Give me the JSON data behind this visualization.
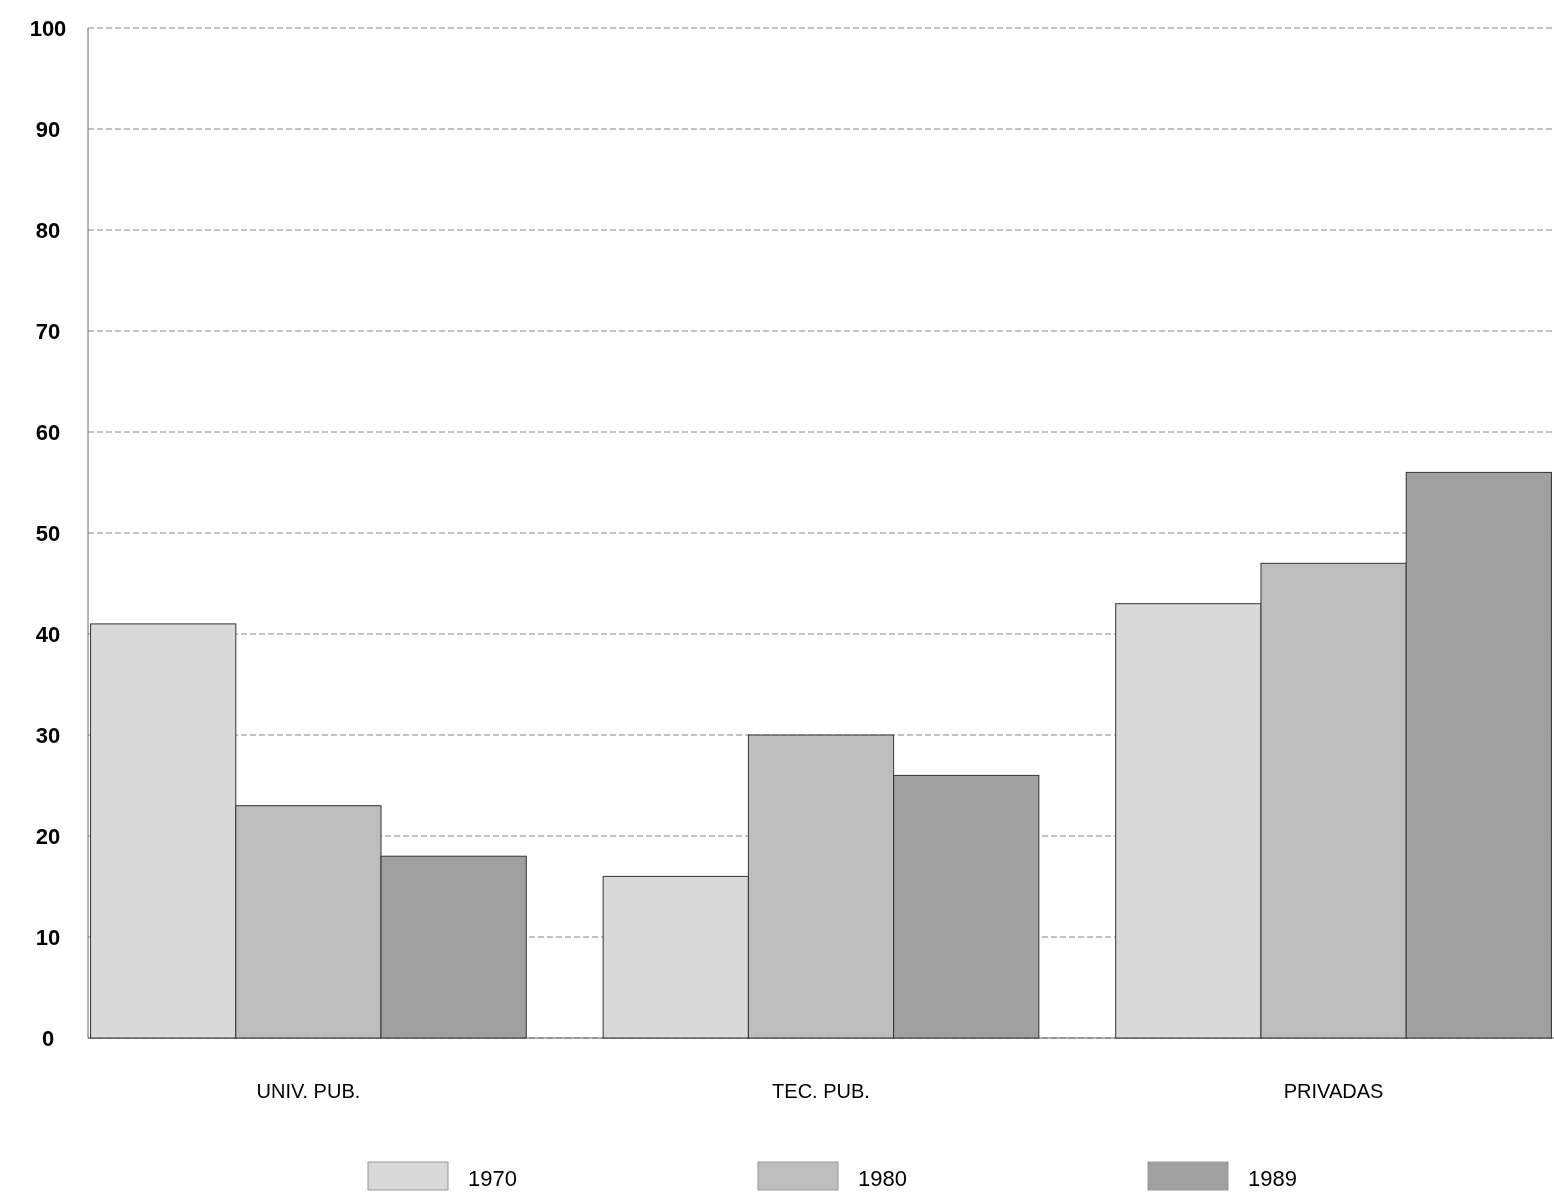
{
  "chart_data": {
    "type": "bar",
    "categories": [
      "UNIV. PUB.",
      "TEC. PUB.",
      "PRIVADAS"
    ],
    "series": [
      {
        "name": "1970",
        "color": "#d9d9d9",
        "values": [
          41,
          16,
          43
        ]
      },
      {
        "name": "1980",
        "color": "#bdbdbd",
        "values": [
          23,
          30,
          47
        ]
      },
      {
        "name": "1989",
        "color": "#a0a0a0",
        "values": [
          18,
          26,
          56
        ]
      }
    ],
    "ylim": [
      0,
      100
    ],
    "yticks": [
      0,
      10,
      20,
      30,
      40,
      50,
      60,
      70,
      80,
      90,
      100
    ],
    "grid": "y",
    "legend": "bottom"
  }
}
